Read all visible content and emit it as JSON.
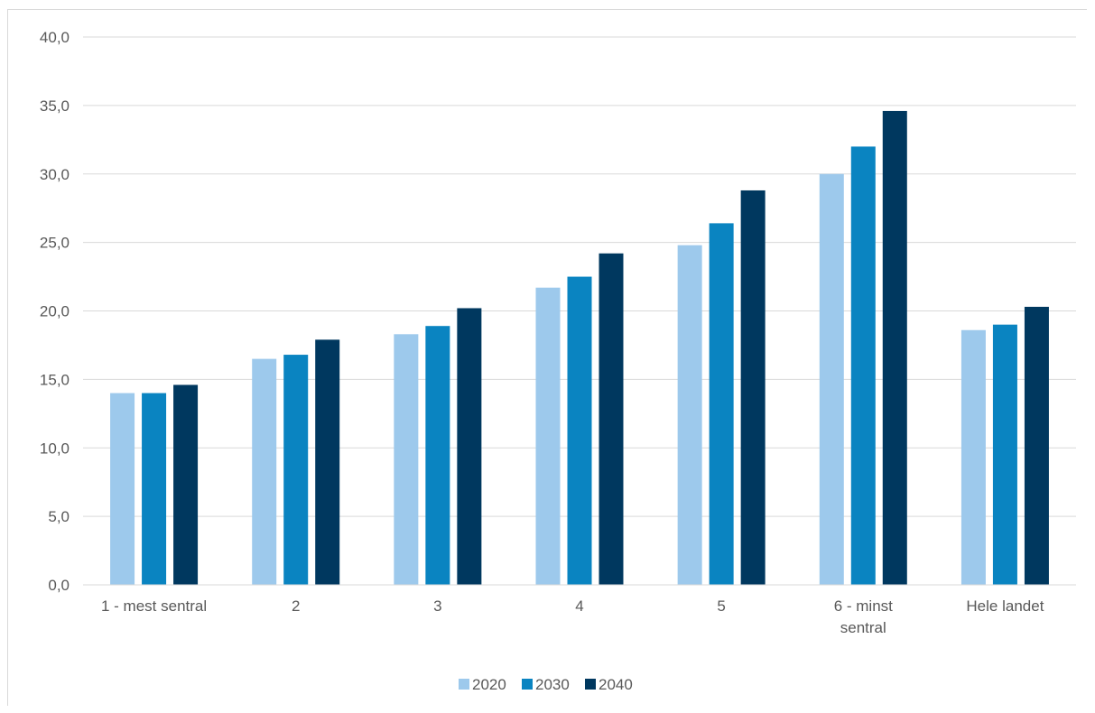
{
  "chart_data": {
    "type": "bar",
    "title": "",
    "xlabel": "",
    "ylabel": "",
    "ylim": [
      0,
      40
    ],
    "ytick_step": 5,
    "ytick_labels": [
      "0,0",
      "5,0",
      "10,0",
      "15,0",
      "20,0",
      "25,0",
      "30,0",
      "35,0",
      "40,0"
    ],
    "grid": true,
    "legend_position": "bottom",
    "categories": [
      [
        "1 - mest sentral"
      ],
      [
        "2"
      ],
      [
        "3"
      ],
      [
        "4"
      ],
      [
        "5"
      ],
      [
        "6 - minst",
        "sentral"
      ],
      [
        "Hele landet"
      ]
    ],
    "series": [
      {
        "name": "2020",
        "color": "#9dc9ec",
        "values": [
          14.0,
          16.5,
          18.3,
          21.7,
          24.8,
          30.0,
          18.6
        ]
      },
      {
        "name": "2030",
        "color": "#0a84c1",
        "values": [
          14.0,
          16.8,
          18.9,
          22.5,
          26.4,
          32.0,
          19.0
        ]
      },
      {
        "name": "2040",
        "color": "#00385f",
        "values": [
          14.6,
          17.9,
          20.2,
          24.2,
          28.8,
          34.6,
          20.3
        ]
      }
    ]
  }
}
